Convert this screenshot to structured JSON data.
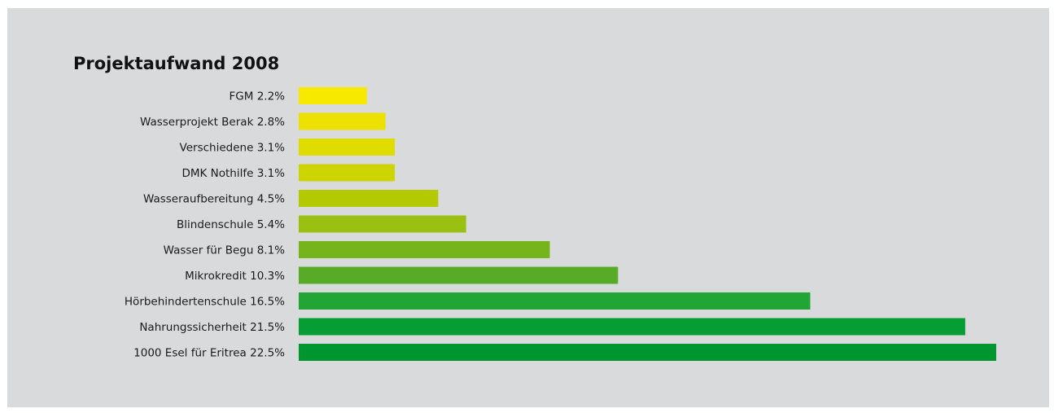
{
  "chart_data": {
    "type": "bar",
    "orientation": "horizontal",
    "title": "Projektaufwand 2008",
    "xlabel": "",
    "ylabel": "",
    "grid": false,
    "legend": "none",
    "categories": [
      "FGM",
      "Wasserprojekt Berak",
      "Verschiedene",
      "DMK Nothilfe",
      "Wasseraufbereitung",
      "Blindenschule",
      "Wasser für Begu",
      "Mikrokredit",
      "Hörbehindertenschule",
      "Nahrungssicherheit",
      "1000 Esel für Eritrea"
    ],
    "value_labels": [
      "2.2%",
      "2.8%",
      "3.1%",
      "3.1%",
      "4.5%",
      "5.4%",
      "8.1%",
      "10.3%",
      "16.5%",
      "21.5%",
      "22.5%"
    ],
    "values": [
      2.2,
      2.8,
      3.1,
      3.1,
      4.5,
      5.4,
      8.1,
      10.3,
      16.5,
      21.5,
      22.5
    ],
    "unit": "%",
    "colors": [
      "#f7ea00",
      "#ece100",
      "#dfdc00",
      "#ccd500",
      "#b3c900",
      "#9ac012",
      "#76b41c",
      "#58ab26",
      "#21a534",
      "#079d35",
      "#00962f"
    ]
  }
}
